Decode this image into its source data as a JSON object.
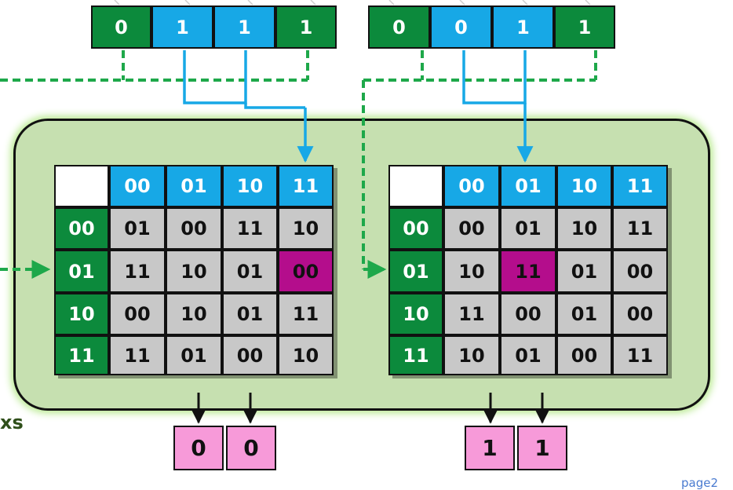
{
  "inputs": [
    {
      "bits": [
        "0",
        "1",
        "1",
        "1"
      ]
    },
    {
      "bits": [
        "0",
        "0",
        "1",
        "1"
      ]
    }
  ],
  "tables": [
    {
      "col_headers": [
        "00",
        "01",
        "10",
        "11"
      ],
      "row_headers": [
        "00",
        "01",
        "10",
        "11"
      ],
      "rows": [
        [
          "01",
          "00",
          "11",
          "10"
        ],
        [
          "11",
          "10",
          "01",
          "00"
        ],
        [
          "00",
          "10",
          "01",
          "11"
        ],
        [
          "11",
          "01",
          "00",
          "10"
        ]
      ],
      "highlight": {
        "row": 1,
        "col": 3
      }
    },
    {
      "col_headers": [
        "00",
        "01",
        "10",
        "11"
      ],
      "row_headers": [
        "00",
        "01",
        "10",
        "11"
      ],
      "rows": [
        [
          "00",
          "01",
          "10",
          "11"
        ],
        [
          "10",
          "11",
          "01",
          "00"
        ],
        [
          "11",
          "00",
          "01",
          "00"
        ],
        [
          "10",
          "01",
          "00",
          "11"
        ]
      ],
      "highlight": {
        "row": 1,
        "col": 1
      }
    }
  ],
  "outputs": [
    {
      "bits": [
        "0",
        "0"
      ]
    },
    {
      "bits": [
        "1",
        "1"
      ]
    }
  ],
  "side_label": "xs",
  "page_label": "page2",
  "colors": {
    "input_green": "#0c8a3c",
    "input_blue": "#17a8e6",
    "highlight": "#b40d8c",
    "output_pink": "#f79ad9",
    "box_fill": "#c6e0b0",
    "arrow_blue": "#17a8e6",
    "dash_green": "#1ea84a"
  }
}
